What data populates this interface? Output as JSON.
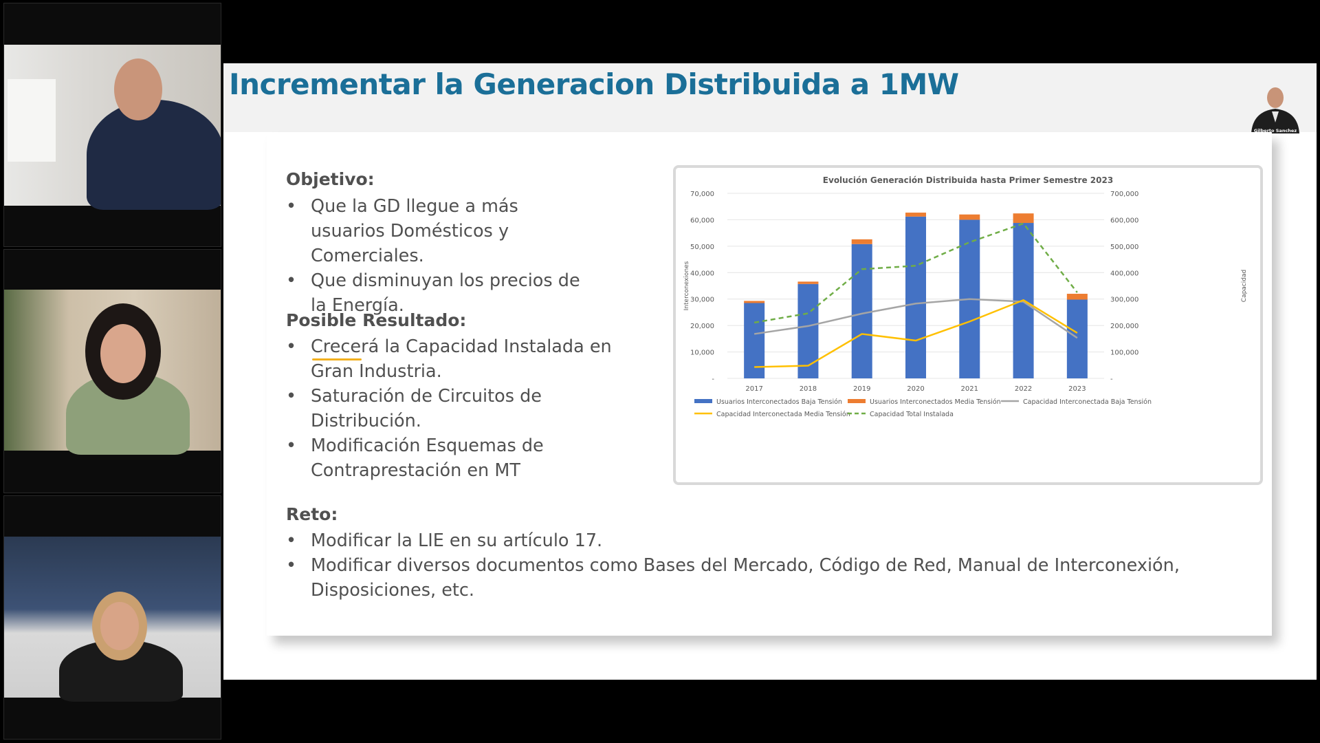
{
  "participants": [
    {
      "id": "p1"
    },
    {
      "id": "p2"
    },
    {
      "id": "p3"
    }
  ],
  "slide": {
    "title": "Incrementar la Generacion Distribuida a 1MW",
    "presenter_badge": "Gilberto Sanchez",
    "objetivo": {
      "heading": "Objetivo:",
      "items": [
        "Que la GD llegue a más usuarios Domésticos y Comerciales.",
        "Que disminuyan los precios de la Energía."
      ]
    },
    "resultado": {
      "heading": "Posible Resultado:",
      "items": [
        "Crecerá la Capacidad Instalada en Gran Industria.",
        "Saturación de Circuitos de Distribución.",
        "Modificación Esquemas de Contraprestación en MT"
      ]
    },
    "reto": {
      "heading": "Reto:",
      "items": [
        "Modificar la LIE en su artículo 17.",
        "Modificar diversos documentos como Bases del Mercado, Código de Red, Manual de Interconexión, Disposiciones, etc."
      ]
    }
  },
  "colors": {
    "title": "#1b6f98",
    "bar_baja": "#4472c4",
    "bar_media": "#ed7d31",
    "line_baja": "#a5a5a5",
    "line_media": "#ffc000",
    "line_total": "#70ad47"
  },
  "chart_data": {
    "type": "bar",
    "title": "Evolución Generación Distribuida hasta Primer Semestre 2023",
    "ylabel": "Interconexiones",
    "y2label": "Capacidad",
    "ylim": [
      0,
      70000
    ],
    "y2lim": [
      0,
      700000
    ],
    "yticks": [
      "-",
      "10,000",
      "20,000",
      "30,000",
      "40,000",
      "50,000",
      "60,000",
      "70,000"
    ],
    "y2ticks": [
      "-",
      "100,000",
      "200,000",
      "300,000",
      "400,000",
      "500,000",
      "600,000",
      "700,000"
    ],
    "categories": [
      "2017",
      "2018",
      "2019",
      "2020",
      "2021",
      "2022",
      "2023"
    ],
    "stacked_series": [
      {
        "name": "Usuarios Interconectados Baja Tensión",
        "axis": "left",
        "values": [
          28500,
          35700,
          50800,
          61200,
          60000,
          58800,
          29800
        ]
      },
      {
        "name": "Usuarios Interconectados Media Tensión",
        "axis": "left",
        "values": [
          800,
          900,
          1800,
          1500,
          2000,
          3600,
          2200
        ]
      }
    ],
    "line_series": [
      {
        "name": "Capacidad Interconectada Baja Tensión",
        "axis": "right",
        "style": "solid",
        "values": [
          168000,
          198000,
          245000,
          283000,
          300000,
          290000,
          153000
        ]
      },
      {
        "name": "Capacidad Interconectada Media Tensión",
        "axis": "right",
        "style": "solid",
        "values": [
          43000,
          48000,
          168000,
          143000,
          215000,
          296000,
          172000
        ]
      },
      {
        "name": "Capacidad Total Instalada",
        "axis": "right",
        "style": "dashed",
        "values": [
          211000,
          246000,
          413000,
          426000,
          515000,
          586000,
          325000
        ]
      }
    ],
    "legend_position": "bottom"
  }
}
